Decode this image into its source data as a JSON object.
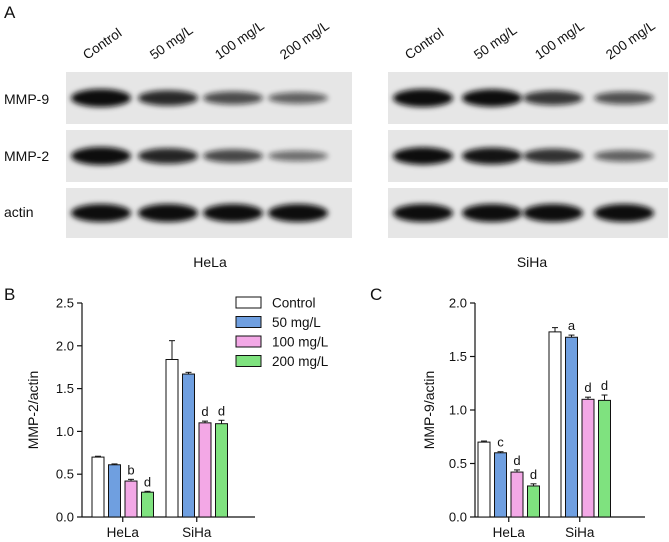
{
  "panels": {
    "a": "A",
    "b": "B",
    "c": "C"
  },
  "blot": {
    "lane_labels": [
      "Control",
      "50 mg/L",
      "100 mg/L",
      "200 mg/L"
    ],
    "row_labels": [
      "MMP-9",
      "MMP-2",
      "actin"
    ],
    "cell_lines": [
      "HeLa",
      "SiHa"
    ],
    "band_intensity": {
      "HeLa": {
        "MMP-9": [
          1.0,
          0.78,
          0.58,
          0.45
        ],
        "MMP-2": [
          1.0,
          0.8,
          0.6,
          0.38
        ],
        "actin": [
          1.0,
          1.0,
          1.0,
          1.0
        ]
      },
      "SiHa": {
        "MMP-9": [
          1.0,
          0.95,
          0.7,
          0.55
        ],
        "MMP-2": [
          0.95,
          0.9,
          0.72,
          0.45
        ],
        "actin": [
          1.0,
          1.0,
          1.0,
          1.0
        ]
      }
    }
  },
  "colors": {
    "Control": "#ffffff",
    "50 mg/L": "#6f9fe0",
    "100 mg/L": "#f3a8e6",
    "200 mg/L": "#7fe27f"
  },
  "chart_data": [
    {
      "type": "bar",
      "panel": "B",
      "ylabel": "MMP-2/actin",
      "ylim": [
        0,
        2.5
      ],
      "yticks": [
        "0.0",
        "0.5",
        "1.0",
        "1.5",
        "2.0",
        "2.5"
      ],
      "categories": [
        "HeLa",
        "SiHa"
      ],
      "legend_position": "top-right",
      "series": [
        {
          "name": "Control",
          "values": [
            0.7,
            1.84
          ],
          "errors": [
            0.01,
            0.22
          ],
          "labels": [
            "",
            ""
          ]
        },
        {
          "name": "50 mg/L",
          "values": [
            0.61,
            1.67
          ],
          "errors": [
            0.01,
            0.02
          ],
          "labels": [
            "",
            ""
          ]
        },
        {
          "name": "100 mg/L",
          "values": [
            0.42,
            1.1
          ],
          "errors": [
            0.02,
            0.02
          ],
          "labels": [
            "b",
            "d"
          ]
        },
        {
          "name": "200 mg/L",
          "values": [
            0.29,
            1.09
          ],
          "errors": [
            0.01,
            0.04
          ],
          "labels": [
            "d",
            "d"
          ]
        }
      ]
    },
    {
      "type": "bar",
      "panel": "C",
      "ylabel": "MMP-9/actin",
      "ylim": [
        0,
        2.0
      ],
      "yticks": [
        "0.0",
        "0.5",
        "1.0",
        "1.5",
        "2.0"
      ],
      "categories": [
        "HeLa",
        "SiHa"
      ],
      "series": [
        {
          "name": "Control",
          "values": [
            0.7,
            1.73
          ],
          "errors": [
            0.01,
            0.04
          ],
          "labels": [
            "",
            ""
          ]
        },
        {
          "name": "50 mg/L",
          "values": [
            0.6,
            1.68
          ],
          "errors": [
            0.01,
            0.02
          ],
          "labels": [
            "c",
            "a"
          ]
        },
        {
          "name": "100 mg/L",
          "values": [
            0.42,
            1.1
          ],
          "errors": [
            0.02,
            0.02
          ],
          "labels": [
            "d",
            "d"
          ]
        },
        {
          "name": "200 mg/L",
          "values": [
            0.29,
            1.09
          ],
          "errors": [
            0.02,
            0.05
          ],
          "labels": [
            "d",
            "d"
          ]
        }
      ]
    }
  ]
}
